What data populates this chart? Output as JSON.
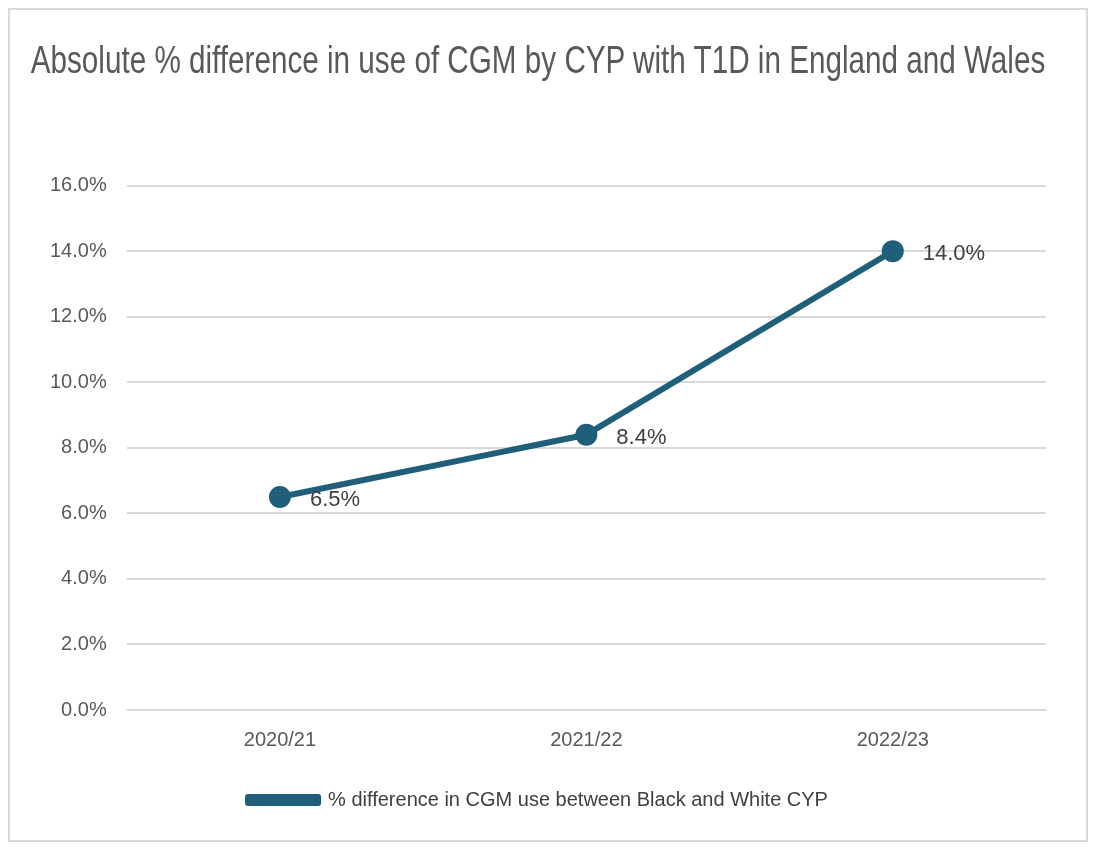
{
  "chart_data": {
    "type": "line",
    "title": "Absolute % difference in use of CGM by CYP with T1D in England and Wales",
    "categories": [
      "2020/21",
      "2021/22",
      "2022/23"
    ],
    "series": [
      {
        "name": "% difference in CGM use between Black and White CYP",
        "color": "#1f5f7a",
        "values": [
          6.5,
          8.4,
          14.0
        ],
        "value_labels": [
          "6.5%",
          "8.4%",
          "14.0%"
        ]
      }
    ],
    "ylim": [
      0,
      16
    ],
    "yticks": [
      {
        "value": 0,
        "label": "0.0%"
      },
      {
        "value": 2,
        "label": "2.0%"
      },
      {
        "value": 4,
        "label": "4.0%"
      },
      {
        "value": 6,
        "label": "6.0%"
      },
      {
        "value": 8,
        "label": "8.0%"
      },
      {
        "value": 10,
        "label": "10.0%"
      },
      {
        "value": 12,
        "label": "12.0%"
      },
      {
        "value": 14,
        "label": "14.0%"
      },
      {
        "value": 16,
        "label": "16.0%"
      }
    ],
    "grid": "y",
    "legend": "bottom",
    "marker": "circle",
    "line_style": "solid"
  }
}
